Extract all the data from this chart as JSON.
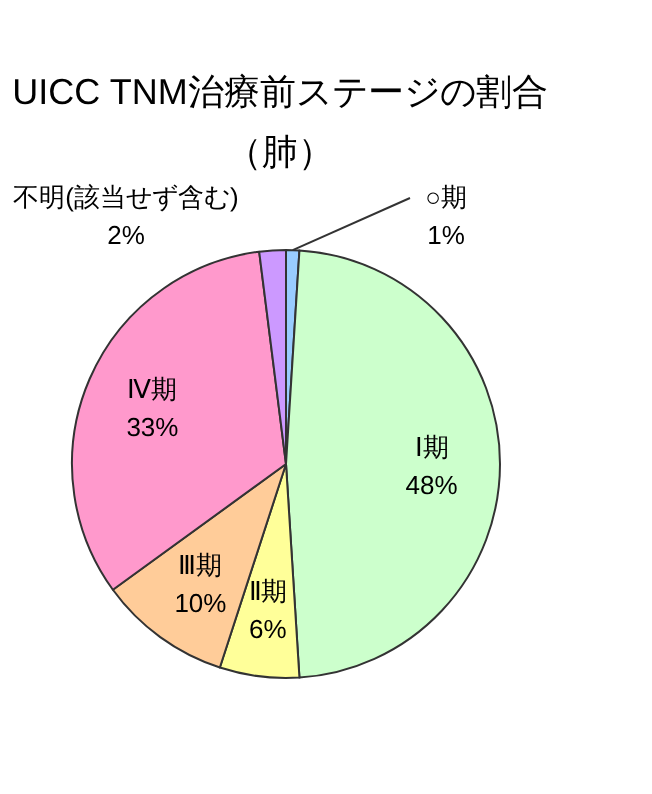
{
  "chart_data": {
    "type": "pie",
    "title": "UICC TNM治療前ステージの割合",
    "subtitle": "（肺）",
    "categories": [
      "○期",
      "Ⅰ期",
      "Ⅱ期",
      "Ⅲ期",
      "Ⅳ期",
      "不明(該当せず含む)"
    ],
    "values": [
      1,
      48,
      6,
      10,
      33,
      2
    ],
    "value_labels": [
      "1%",
      "48%",
      "6%",
      "10%",
      "33%",
      "2%"
    ],
    "colors": [
      "#99ccff",
      "#ccffcc",
      "#ffff99",
      "#ffcc99",
      "#ff99cc",
      "#cc99ff"
    ]
  }
}
